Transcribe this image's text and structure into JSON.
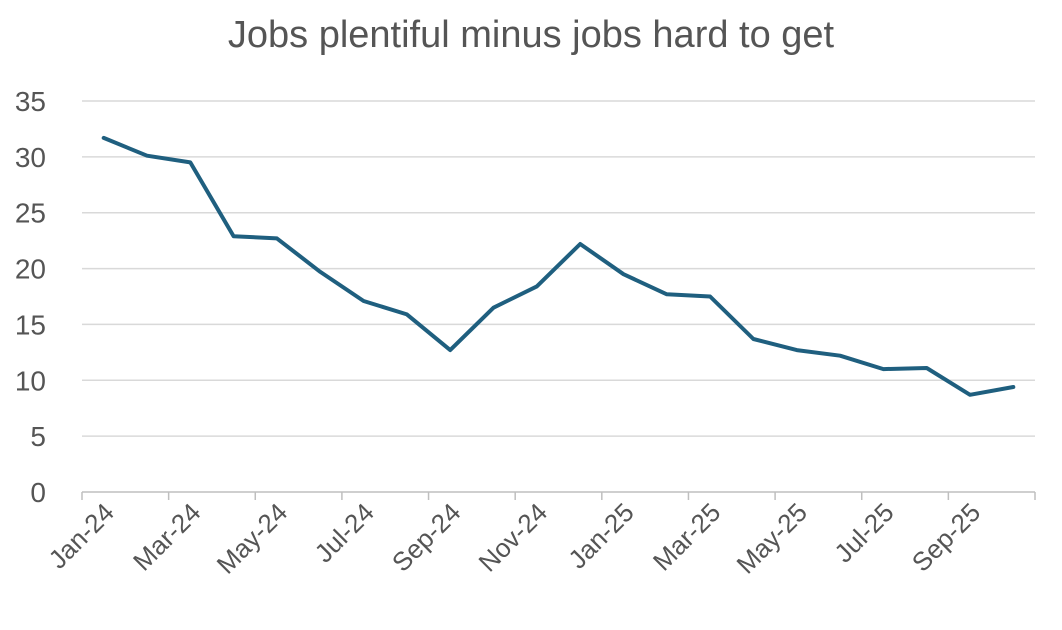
{
  "chart_data": {
    "type": "line",
    "title": "Jobs plentiful minus jobs hard to get",
    "xlabel": "",
    "ylabel": "",
    "ylim": [
      0,
      35
    ],
    "yticks": [
      0,
      5,
      10,
      15,
      20,
      25,
      30,
      35
    ],
    "x_tick_labels": [
      "Jan-24",
      "Mar-24",
      "May-24",
      "Jul-24",
      "Sep-24",
      "Nov-24",
      "Jan-25",
      "Mar-25",
      "May-25",
      "Jul-25",
      "Sep-25"
    ],
    "grid": "horizontal",
    "line_color": "#1f5f7f",
    "series": [
      {
        "x": [
          "Jan-24",
          "Feb-24",
          "Mar-24",
          "Apr-24",
          "May-24",
          "Jun-24",
          "Jul-24",
          "Aug-24",
          "Sep-24",
          "Oct-24",
          "Nov-24",
          "Dec-24",
          "Jan-25",
          "Feb-25",
          "Mar-25",
          "Apr-25",
          "May-25",
          "Jun-25",
          "Jul-25",
          "Aug-25",
          "Sep-25",
          "Oct-25"
        ],
        "values": [
          31.7,
          30.1,
          29.5,
          22.9,
          22.7,
          19.7,
          17.1,
          15.9,
          12.7,
          16.5,
          18.4,
          22.2,
          19.5,
          17.7,
          17.5,
          13.7,
          12.7,
          12.2,
          11.0,
          11.1,
          8.7,
          9.4
        ]
      }
    ]
  }
}
